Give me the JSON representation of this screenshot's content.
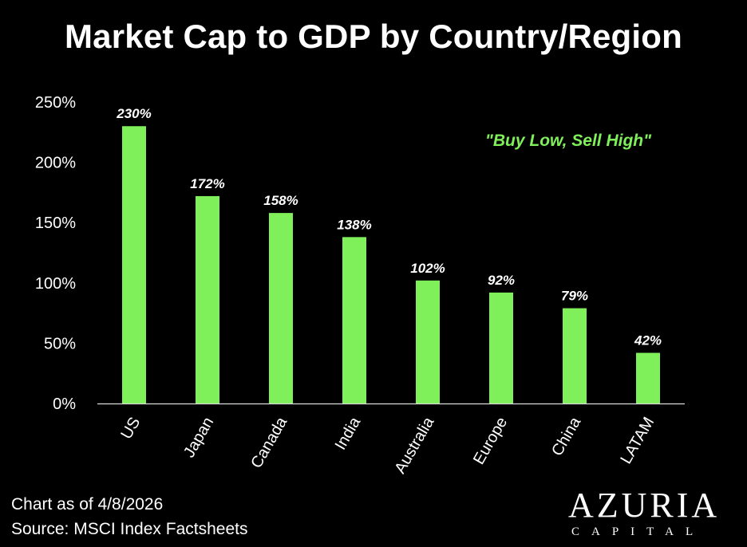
{
  "chart_data": {
    "type": "bar",
    "title": "Market Cap to GDP by Country/Region",
    "categories": [
      "US",
      "Japan",
      "Canada",
      "India",
      "Australia",
      "Europe",
      "China",
      "LATAM"
    ],
    "values": [
      230,
      172,
      158,
      138,
      102,
      92,
      79,
      42
    ],
    "data_labels": [
      "230%",
      "172%",
      "158%",
      "138%",
      "102%",
      "92%",
      "79%",
      "42%"
    ],
    "y_ticks": [
      0,
      50,
      100,
      150,
      200,
      250
    ],
    "y_tick_labels": [
      "0%",
      "50%",
      "100%",
      "150%",
      "200%",
      "250%"
    ],
    "ylim": [
      0,
      250
    ],
    "xlabel": "",
    "ylabel": "",
    "annotation": "\"Buy Low, Sell High\"",
    "bar_color": "#80f05a",
    "annotation_color": "#80f05a",
    "grid": false
  },
  "footer": {
    "as_of": "Chart as of 4/8/2026",
    "source": "Source: MSCI Index Factsheets"
  },
  "brand": {
    "name": "AZURIA",
    "sub": "CAPITAL"
  }
}
